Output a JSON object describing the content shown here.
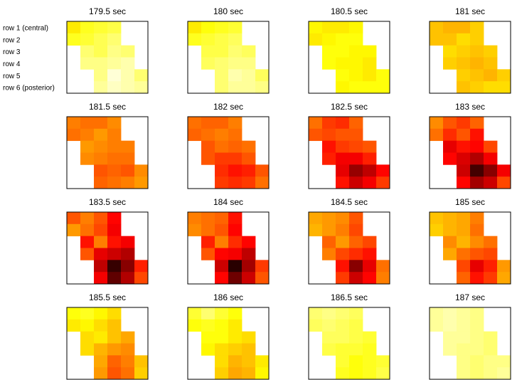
{
  "chart_data": {
    "type": "heatmap",
    "grid": {
      "rows": 6,
      "cols": 6,
      "border_color": "#000000"
    },
    "row_labels": [
      "row 1 (central)",
      "row 2",
      "row 3",
      "row 4",
      "row 5",
      "row 6 (posterior)"
    ],
    "color_scale": {
      "name": "hot",
      "low": "#000000",
      "high": "#ffffff",
      "empty": "#ffffff"
    },
    "panels": [
      {
        "title": "179.5 sec",
        "values": [
          [
            0.72,
            0.78,
            0.8,
            0.82,
            null,
            null
          ],
          [
            0.78,
            0.8,
            0.83,
            0.86,
            null,
            null
          ],
          [
            null,
            0.86,
            0.83,
            0.88,
            0.86,
            null
          ],
          [
            null,
            0.88,
            0.88,
            0.9,
            0.92,
            null
          ],
          [
            null,
            null,
            0.88,
            0.96,
            0.92,
            0.86
          ],
          [
            null,
            null,
            0.9,
            0.94,
            0.92,
            0.9
          ]
        ]
      },
      {
        "title": "180 sec",
        "values": [
          [
            0.72,
            0.76,
            0.78,
            0.8,
            null,
            null
          ],
          [
            0.78,
            0.8,
            0.82,
            0.84,
            null,
            null
          ],
          [
            null,
            0.82,
            0.82,
            0.86,
            0.84,
            null
          ],
          [
            null,
            0.84,
            0.86,
            0.88,
            0.88,
            null
          ],
          [
            null,
            null,
            0.86,
            0.92,
            0.9,
            0.84
          ],
          [
            null,
            null,
            0.86,
            0.9,
            0.9,
            0.88
          ]
        ]
      },
      {
        "title": "180.5 sec",
        "values": [
          [
            0.74,
            0.72,
            0.72,
            0.74,
            null,
            null
          ],
          [
            0.72,
            0.74,
            0.76,
            0.76,
            null,
            null
          ],
          [
            null,
            0.76,
            0.76,
            0.74,
            0.74,
            null
          ],
          [
            null,
            0.76,
            0.74,
            0.74,
            0.72,
            null
          ],
          [
            null,
            null,
            0.76,
            0.74,
            0.72,
            0.76
          ],
          [
            null,
            null,
            0.74,
            0.76,
            0.76,
            0.76
          ]
        ]
      },
      {
        "title": "181 sec",
        "values": [
          [
            0.66,
            0.64,
            0.64,
            0.68,
            null,
            null
          ],
          [
            0.66,
            0.66,
            0.7,
            0.68,
            null,
            null
          ],
          [
            null,
            0.7,
            0.68,
            0.66,
            0.68,
            null
          ],
          [
            null,
            0.68,
            0.66,
            0.64,
            0.66,
            null
          ],
          [
            null,
            null,
            0.68,
            0.66,
            0.64,
            0.68
          ],
          [
            null,
            null,
            0.66,
            0.68,
            0.7,
            0.7
          ]
        ]
      },
      {
        "title": "181.5 sec",
        "values": [
          [
            0.56,
            0.54,
            0.54,
            0.58,
            null,
            null
          ],
          [
            0.54,
            0.56,
            0.6,
            0.56,
            null,
            null
          ],
          [
            null,
            0.6,
            0.58,
            0.56,
            0.56,
            null
          ],
          [
            null,
            0.58,
            0.56,
            0.54,
            0.54,
            null
          ],
          [
            null,
            null,
            0.5,
            0.52,
            0.5,
            0.58
          ],
          [
            null,
            null,
            0.52,
            0.54,
            0.56,
            0.6
          ]
        ]
      },
      {
        "title": "182 sec",
        "values": [
          [
            0.54,
            0.52,
            0.52,
            0.56,
            null,
            null
          ],
          [
            0.52,
            0.54,
            0.56,
            0.54,
            null,
            null
          ],
          [
            null,
            0.5,
            0.54,
            0.52,
            0.54,
            null
          ],
          [
            null,
            0.5,
            0.46,
            0.46,
            0.5,
            null
          ],
          [
            null,
            null,
            0.44,
            0.4,
            0.42,
            0.5
          ],
          [
            null,
            null,
            0.46,
            0.44,
            0.46,
            0.54
          ]
        ]
      },
      {
        "title": "182.5 sec",
        "values": [
          [
            0.54,
            0.46,
            0.44,
            0.52,
            null,
            null
          ],
          [
            0.5,
            0.48,
            0.5,
            0.5,
            null,
            null
          ],
          [
            null,
            0.4,
            0.46,
            0.48,
            0.5,
            null
          ],
          [
            null,
            0.42,
            0.36,
            0.36,
            0.42,
            null
          ],
          [
            null,
            null,
            0.34,
            0.22,
            0.28,
            0.38
          ],
          [
            null,
            null,
            0.4,
            0.3,
            0.36,
            0.46
          ]
        ]
      },
      {
        "title": "183 sec",
        "values": [
          [
            0.58,
            0.5,
            0.46,
            0.52,
            null,
            null
          ],
          [
            0.54,
            0.44,
            0.5,
            0.4,
            null,
            null
          ],
          [
            null,
            0.34,
            0.4,
            0.38,
            0.48,
            null
          ],
          [
            null,
            0.38,
            0.32,
            0.26,
            0.36,
            null
          ],
          [
            null,
            null,
            0.3,
            0.1,
            0.2,
            0.36
          ],
          [
            null,
            null,
            0.38,
            0.24,
            0.3,
            0.48
          ]
        ]
      },
      {
        "title": "183.5 sec",
        "values": [
          [
            0.5,
            0.56,
            0.5,
            0.38,
            null,
            null
          ],
          [
            0.6,
            0.54,
            0.48,
            0.36,
            null,
            null
          ],
          [
            null,
            0.4,
            0.56,
            0.4,
            0.36,
            null
          ],
          [
            null,
            0.5,
            0.34,
            0.3,
            0.26,
            null
          ],
          [
            null,
            null,
            0.28,
            0.08,
            0.2,
            0.42
          ],
          [
            null,
            null,
            0.36,
            0.14,
            0.26,
            0.48
          ]
        ]
      },
      {
        "title": "184 sec",
        "values": [
          [
            0.56,
            0.54,
            0.52,
            0.4,
            null,
            null
          ],
          [
            0.58,
            0.54,
            0.5,
            0.38,
            null,
            null
          ],
          [
            null,
            0.42,
            0.56,
            0.44,
            0.38,
            null
          ],
          [
            null,
            0.5,
            0.38,
            0.36,
            0.28,
            null
          ],
          [
            null,
            null,
            0.3,
            0.06,
            0.24,
            0.46
          ],
          [
            null,
            null,
            0.38,
            0.16,
            0.3,
            0.5
          ]
        ]
      },
      {
        "title": "184.5 sec",
        "values": [
          [
            0.62,
            0.6,
            0.58,
            0.5,
            null,
            null
          ],
          [
            0.64,
            0.6,
            0.56,
            0.48,
            null,
            null
          ],
          [
            null,
            0.52,
            0.6,
            0.52,
            0.48,
            null
          ],
          [
            null,
            0.56,
            0.48,
            0.44,
            0.4,
            null
          ],
          [
            null,
            null,
            0.4,
            0.2,
            0.34,
            0.54
          ],
          [
            null,
            null,
            0.46,
            0.3,
            0.38,
            0.56
          ]
        ]
      },
      {
        "title": "185 sec",
        "values": [
          [
            0.66,
            0.64,
            0.62,
            0.56,
            null,
            null
          ],
          [
            0.68,
            0.64,
            0.62,
            0.54,
            null,
            null
          ],
          [
            null,
            0.58,
            0.64,
            0.58,
            0.54,
            null
          ],
          [
            null,
            0.62,
            0.54,
            0.5,
            0.48,
            null
          ],
          [
            null,
            null,
            0.48,
            0.34,
            0.42,
            0.6
          ],
          [
            null,
            null,
            0.52,
            0.4,
            0.46,
            0.62
          ]
        ]
      },
      {
        "title": "185.5 sec",
        "values": [
          [
            0.76,
            0.78,
            0.74,
            0.7,
            null,
            null
          ],
          [
            0.72,
            0.74,
            0.7,
            0.66,
            null,
            null
          ],
          [
            null,
            0.7,
            0.72,
            0.66,
            0.62,
            null
          ],
          [
            null,
            0.7,
            0.64,
            0.6,
            0.58,
            null
          ],
          [
            null,
            null,
            0.62,
            0.52,
            0.56,
            0.66
          ],
          [
            null,
            null,
            0.6,
            0.5,
            0.54,
            0.68
          ]
        ]
      },
      {
        "title": "186 sec",
        "values": [
          [
            0.8,
            0.86,
            0.8,
            0.76,
            null,
            null
          ],
          [
            0.76,
            0.78,
            0.76,
            0.72,
            null,
            null
          ],
          [
            null,
            0.76,
            0.76,
            0.72,
            0.7,
            null
          ],
          [
            null,
            0.74,
            0.7,
            0.68,
            0.66,
            null
          ],
          [
            null,
            null,
            0.7,
            0.64,
            0.66,
            0.72
          ],
          [
            null,
            null,
            0.68,
            0.62,
            0.64,
            0.74
          ]
        ]
      },
      {
        "title": "186.5 sec",
        "values": [
          [
            0.86,
            0.88,
            0.86,
            0.84,
            null,
            null
          ],
          [
            0.84,
            0.86,
            0.84,
            0.82,
            null,
            null
          ],
          [
            null,
            0.84,
            0.84,
            0.82,
            0.8,
            null
          ],
          [
            null,
            0.82,
            0.8,
            0.8,
            0.78,
            null
          ],
          [
            null,
            null,
            0.8,
            0.76,
            0.78,
            0.8
          ],
          [
            null,
            null,
            0.78,
            0.76,
            0.78,
            0.82
          ]
        ]
      },
      {
        "title": "187 sec",
        "values": [
          [
            0.9,
            0.92,
            0.9,
            0.88,
            null,
            null
          ],
          [
            0.9,
            0.92,
            0.9,
            0.88,
            null,
            null
          ],
          [
            null,
            0.9,
            0.9,
            0.88,
            0.86,
            null
          ],
          [
            null,
            0.9,
            0.88,
            0.88,
            0.86,
            null
          ],
          [
            null,
            null,
            0.88,
            0.86,
            0.88,
            0.88
          ],
          [
            null,
            null,
            0.88,
            0.86,
            0.88,
            0.9
          ]
        ]
      }
    ]
  }
}
